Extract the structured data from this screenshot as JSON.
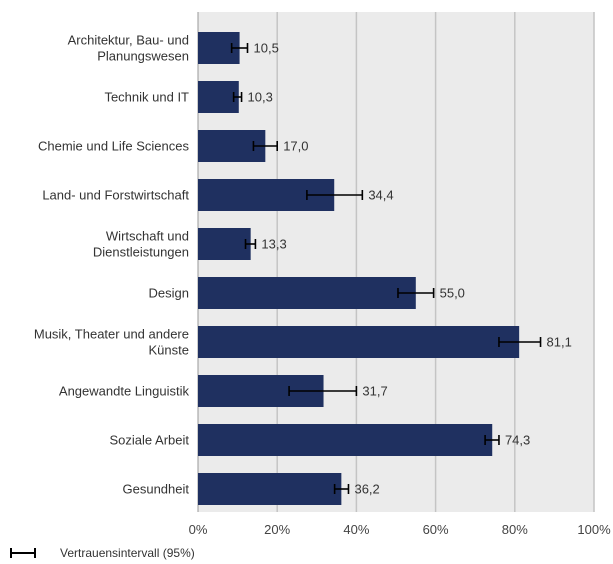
{
  "chart_data": {
    "type": "bar",
    "orientation": "horizontal",
    "categories": [
      [
        "Architektur, Bau- und",
        "Planungswesen"
      ],
      [
        "Technik und IT"
      ],
      [
        "Chemie und Life Sciences"
      ],
      [
        "Land- und Forstwirtschaft"
      ],
      [
        "Wirtschaft und",
        "Dienstleistungen"
      ],
      [
        "Design"
      ],
      [
        "Musik, Theater und andere",
        "Künste"
      ],
      [
        "Angewandte Linguistik"
      ],
      [
        "Soziale Arbeit"
      ],
      [
        "Gesundheit"
      ]
    ],
    "values": [
      10.5,
      10.3,
      17.0,
      34.4,
      13.3,
      55.0,
      81.1,
      31.7,
      74.3,
      36.2
    ],
    "value_labels": [
      "10,5",
      "10,3",
      "17,0",
      "34,4",
      "13,3",
      "55,0",
      "81,1",
      "31,7",
      "74,3",
      "36,2"
    ],
    "ci_low": [
      8.5,
      9.0,
      14.0,
      27.5,
      12.0,
      50.5,
      76.0,
      23.0,
      72.5,
      34.5
    ],
    "ci_high": [
      12.5,
      11.0,
      20.0,
      41.5,
      14.5,
      59.5,
      86.5,
      40.0,
      76.0,
      38.0
    ],
    "xlim": [
      0,
      100
    ],
    "x_ticks": [
      0,
      20,
      40,
      60,
      80,
      100
    ],
    "x_tick_labels": [
      "0%",
      "20%",
      "40%",
      "60%",
      "80%",
      "100%"
    ],
    "grid": true,
    "bar_color": "#1f3060",
    "plot_background": "#ebebeb",
    "legend": {
      "position": "bottom-left",
      "label": "Vertrauensintervall (95%)"
    }
  }
}
